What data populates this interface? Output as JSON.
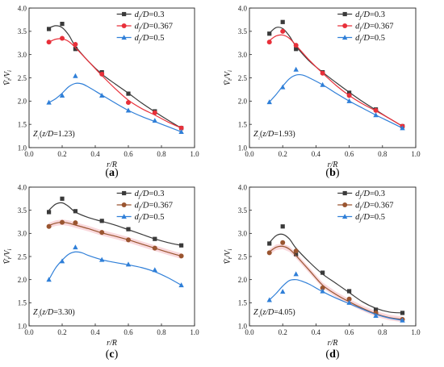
{
  "colors": {
    "series_0.3": "#3a3a3a",
    "series_0.367_a_b": "#e8303a",
    "series_0.367_c_d": "#9a5530",
    "series_0.5": "#2f7fd8",
    "band_0.367_c_d": "#f4b8c0"
  },
  "chart_data": [
    {
      "type": "scatter",
      "panel_label": "(a)",
      "zone_label": "Z₁(z/D=1.23)",
      "xlabel": "r/R",
      "ylabel": "V̄t/Vi",
      "xlim": [
        0.0,
        1.0
      ],
      "ylim": [
        1.0,
        4.0
      ],
      "x_ticks": [
        "0.0",
        "0.2",
        "0.4",
        "0.6",
        "0.8",
        "1.0"
      ],
      "y_ticks": [
        "1.0",
        "1.5",
        "2.0",
        "2.5",
        "3.0",
        "3.5",
        "4.0"
      ],
      "legend_position": "top-right",
      "series": [
        {
          "name": "dj/D=0.3",
          "marker": "square",
          "x": [
            0.12,
            0.2,
            0.28,
            0.44,
            0.6,
            0.76,
            0.92
          ],
          "y": [
            3.55,
            3.66,
            3.12,
            2.62,
            2.16,
            1.78,
            1.42
          ],
          "fit_x": [
            0.12,
            0.16,
            0.2,
            0.24,
            0.28,
            0.36,
            0.44,
            0.52,
            0.6,
            0.68,
            0.76,
            0.84,
            0.92
          ],
          "fit_y": [
            3.57,
            3.62,
            3.58,
            3.42,
            3.18,
            2.85,
            2.58,
            2.37,
            2.17,
            1.96,
            1.77,
            1.59,
            1.42
          ]
        },
        {
          "name": "dj/D=0.367",
          "marker": "circle",
          "x": [
            0.12,
            0.2,
            0.28,
            0.44,
            0.6,
            0.76,
            0.92
          ],
          "y": [
            3.27,
            3.35,
            3.22,
            2.58,
            1.97,
            1.75,
            1.42
          ],
          "fit_x": [
            0.12,
            0.16,
            0.2,
            0.24,
            0.28,
            0.36,
            0.44,
            0.52,
            0.6,
            0.68,
            0.76,
            0.84,
            0.92
          ],
          "fit_y": [
            3.27,
            3.33,
            3.34,
            3.28,
            3.15,
            2.85,
            2.55,
            2.27,
            2.02,
            1.84,
            1.7,
            1.55,
            1.42
          ]
        },
        {
          "name": "dj/D=0.5",
          "marker": "triangle",
          "x": [
            0.12,
            0.2,
            0.28,
            0.44,
            0.6,
            0.76,
            0.92
          ],
          "y": [
            1.97,
            2.12,
            2.54,
            2.12,
            1.8,
            1.58,
            1.34
          ],
          "fit_x": [
            0.12,
            0.16,
            0.2,
            0.24,
            0.28,
            0.32,
            0.36,
            0.44,
            0.52,
            0.6,
            0.68,
            0.76,
            0.84,
            0.92
          ],
          "fit_y": [
            1.97,
            2.05,
            2.17,
            2.31,
            2.38,
            2.37,
            2.3,
            2.13,
            1.96,
            1.8,
            1.67,
            1.56,
            1.45,
            1.34
          ]
        }
      ]
    },
    {
      "type": "scatter",
      "panel_label": "(b)",
      "zone_label": "Z₂(z/D=1.93)",
      "xlabel": "r/R",
      "ylabel": "V̄t/Vi",
      "xlim": [
        0.0,
        1.0
      ],
      "ylim": [
        1.0,
        4.0
      ],
      "x_ticks": [
        "0.0",
        "0.2",
        "0.4",
        "0.6",
        "0.8",
        "1.0"
      ],
      "y_ticks": [
        "1.0",
        "1.5",
        "2.0",
        "2.5",
        "3.0",
        "3.5",
        "4.0"
      ],
      "legend_position": "top-right",
      "series": [
        {
          "name": "dj/D=0.3",
          "marker": "square",
          "x": [
            0.12,
            0.2,
            0.28,
            0.44,
            0.6,
            0.76,
            0.92
          ],
          "y": [
            3.45,
            3.7,
            3.12,
            2.62,
            2.18,
            1.82,
            1.46
          ],
          "fit_x": [
            0.12,
            0.16,
            0.2,
            0.24,
            0.28,
            0.36,
            0.44,
            0.52,
            0.6,
            0.68,
            0.76,
            0.84,
            0.92
          ],
          "fit_y": [
            3.46,
            3.58,
            3.56,
            3.4,
            3.18,
            2.86,
            2.62,
            2.4,
            2.19,
            1.99,
            1.81,
            1.63,
            1.46
          ]
        },
        {
          "name": "dj/D=0.367",
          "marker": "circle",
          "x": [
            0.12,
            0.2,
            0.28,
            0.44,
            0.6,
            0.76,
            0.92
          ],
          "y": [
            3.27,
            3.5,
            3.2,
            2.6,
            2.12,
            1.8,
            1.46
          ],
          "fit_x": [
            0.12,
            0.16,
            0.2,
            0.24,
            0.28,
            0.36,
            0.44,
            0.52,
            0.6,
            0.68,
            0.76,
            0.84,
            0.92
          ],
          "fit_y": [
            3.3,
            3.4,
            3.42,
            3.35,
            3.2,
            2.88,
            2.6,
            2.34,
            2.12,
            1.94,
            1.79,
            1.63,
            1.46
          ]
        },
        {
          "name": "dj/D=0.5",
          "marker": "triangle",
          "x": [
            0.12,
            0.2,
            0.28,
            0.44,
            0.6,
            0.76,
            0.92
          ],
          "y": [
            1.98,
            2.3,
            2.68,
            2.35,
            2.0,
            1.7,
            1.42
          ],
          "fit_x": [
            0.12,
            0.16,
            0.2,
            0.24,
            0.28,
            0.32,
            0.36,
            0.44,
            0.52,
            0.6,
            0.68,
            0.76,
            0.84,
            0.92
          ],
          "fit_y": [
            1.98,
            2.14,
            2.32,
            2.48,
            2.56,
            2.56,
            2.5,
            2.35,
            2.17,
            2.0,
            1.85,
            1.7,
            1.56,
            1.42
          ]
        }
      ]
    },
    {
      "type": "scatter",
      "panel_label": "(c)",
      "zone_label": "Z₃(z/D=3.30)",
      "xlabel": "r/R",
      "ylabel": "V̄t/Vi",
      "xlim": [
        0.0,
        1.0
      ],
      "ylim": [
        1.0,
        4.0
      ],
      "x_ticks": [
        "0.0",
        "0.2",
        "0.4",
        "0.6",
        "0.8",
        "1.0"
      ],
      "y_ticks": [
        "1.0",
        "1.5",
        "2.0",
        "2.5",
        "3.0",
        "3.5",
        "4.0"
      ],
      "legend_position": "top-right",
      "series": [
        {
          "name": "dj/D=0.3",
          "marker": "square",
          "x": [
            0.12,
            0.2,
            0.28,
            0.44,
            0.6,
            0.76,
            0.92
          ],
          "y": [
            3.46,
            3.75,
            3.48,
            3.27,
            3.09,
            2.88,
            2.74
          ],
          "fit_x": [
            0.12,
            0.16,
            0.2,
            0.24,
            0.28,
            0.36,
            0.44,
            0.52,
            0.6,
            0.68,
            0.76,
            0.84,
            0.92
          ],
          "fit_y": [
            3.5,
            3.63,
            3.66,
            3.58,
            3.46,
            3.34,
            3.26,
            3.18,
            3.08,
            2.98,
            2.88,
            2.8,
            2.74
          ]
        },
        {
          "name": "dj/D=0.367",
          "marker": "circle",
          "x": [
            0.12,
            0.2,
            0.28,
            0.44,
            0.6,
            0.76,
            0.92
          ],
          "y": [
            3.15,
            3.24,
            3.23,
            3.02,
            2.86,
            2.68,
            2.51
          ],
          "fit_x": [
            0.12,
            0.16,
            0.2,
            0.24,
            0.28,
            0.36,
            0.44,
            0.52,
            0.6,
            0.68,
            0.76,
            0.84,
            0.92
          ],
          "fit_y": [
            3.17,
            3.22,
            3.24,
            3.22,
            3.18,
            3.1,
            3.01,
            2.94,
            2.86,
            2.77,
            2.68,
            2.59,
            2.51
          ]
        },
        {
          "name": "dj/D=0.5",
          "marker": "triangle",
          "x": [
            0.12,
            0.2,
            0.28,
            0.44,
            0.6,
            0.76,
            0.92
          ],
          "y": [
            2.0,
            2.4,
            2.7,
            2.43,
            2.33,
            2.21,
            1.88
          ],
          "fit_x": [
            0.12,
            0.16,
            0.2,
            0.24,
            0.28,
            0.32,
            0.36,
            0.44,
            0.52,
            0.6,
            0.68,
            0.76,
            0.84,
            0.92
          ],
          "fit_y": [
            2.0,
            2.25,
            2.42,
            2.55,
            2.6,
            2.58,
            2.52,
            2.43,
            2.37,
            2.32,
            2.26,
            2.17,
            2.04,
            1.88
          ]
        }
      ]
    },
    {
      "type": "scatter",
      "panel_label": "(d)",
      "zone_label": "Z₄(z/D=4.05)",
      "xlabel": "r/R",
      "ylabel": "V̄t/Vi",
      "xlim": [
        0.0,
        1.0
      ],
      "ylim": [
        1.0,
        4.0
      ],
      "x_ticks": [
        "0.0",
        "0.2",
        "0.4",
        "0.6",
        "0.8",
        "1.0"
      ],
      "y_ticks": [
        "1.0",
        "1.5",
        "2.0",
        "2.5",
        "3.0",
        "3.5",
        "4.0"
      ],
      "legend_position": "top-right",
      "series": [
        {
          "name": "dj/D=0.3",
          "marker": "square",
          "x": [
            0.12,
            0.2,
            0.28,
            0.44,
            0.6,
            0.76,
            0.92
          ],
          "y": [
            2.78,
            3.15,
            2.55,
            2.15,
            1.75,
            1.35,
            1.28
          ],
          "fit_x": [
            0.12,
            0.16,
            0.2,
            0.24,
            0.28,
            0.36,
            0.44,
            0.52,
            0.6,
            0.68,
            0.76,
            0.84,
            0.92
          ],
          "fit_y": [
            2.8,
            2.95,
            2.98,
            2.88,
            2.68,
            2.38,
            2.12,
            1.92,
            1.72,
            1.52,
            1.38,
            1.3,
            1.28
          ]
        },
        {
          "name": "dj/D=0.367",
          "marker": "circle",
          "x": [
            0.12,
            0.2,
            0.28,
            0.44,
            0.6,
            0.76,
            0.92
          ],
          "y": [
            2.58,
            2.8,
            2.62,
            1.82,
            1.58,
            1.28,
            1.14
          ],
          "fit_x": [
            0.12,
            0.16,
            0.2,
            0.24,
            0.28,
            0.36,
            0.44,
            0.52,
            0.6,
            0.68,
            0.76,
            0.84,
            0.92
          ],
          "fit_y": [
            2.6,
            2.7,
            2.72,
            2.66,
            2.52,
            2.2,
            1.88,
            1.68,
            1.52,
            1.38,
            1.26,
            1.18,
            1.14
          ]
        },
        {
          "name": "dj/D=0.5",
          "marker": "triangle",
          "x": [
            0.12,
            0.2,
            0.28,
            0.44,
            0.6,
            0.76,
            0.92
          ],
          "y": [
            1.56,
            1.74,
            2.12,
            1.75,
            1.5,
            1.22,
            1.12
          ],
          "fit_x": [
            0.12,
            0.16,
            0.2,
            0.24,
            0.28,
            0.32,
            0.36,
            0.44,
            0.52,
            0.6,
            0.68,
            0.76,
            0.84,
            0.92
          ],
          "fit_y": [
            1.56,
            1.7,
            1.86,
            1.98,
            2.0,
            1.96,
            1.9,
            1.74,
            1.6,
            1.48,
            1.36,
            1.25,
            1.17,
            1.12
          ]
        }
      ]
    }
  ]
}
